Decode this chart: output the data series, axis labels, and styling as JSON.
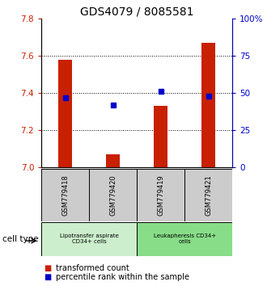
{
  "title": "GDS4079 / 8085581",
  "samples": [
    "GSM779418",
    "GSM779420",
    "GSM779419",
    "GSM779421"
  ],
  "red_values": [
    7.58,
    7.07,
    7.33,
    7.67
  ],
  "blue_values": [
    47,
    42,
    51,
    48
  ],
  "ylim_left": [
    7.0,
    7.8
  ],
  "ylim_right": [
    0,
    100
  ],
  "yticks_left": [
    7.0,
    7.2,
    7.4,
    7.6,
    7.8
  ],
  "yticks_right": [
    0,
    25,
    50,
    75,
    100
  ],
  "ytick_labels_right": [
    "0",
    "25",
    "50",
    "75",
    "100%"
  ],
  "red_color": "#c82000",
  "blue_color": "#0000cc",
  "bar_width": 0.3,
  "legend_red_label": "transformed count",
  "legend_blue_label": "percentile rank within the sample",
  "cell_type_label": "cell type",
  "sample_box_color": "#cccccc",
  "cell_group1_color": "#cceecc",
  "cell_group2_color": "#88dd88",
  "cell_group1_label": "Lipotransfer aspirate\nCD34+ cells",
  "cell_group2_label": "Leukapheresis CD34+\ncells",
  "title_fontsize": 10,
  "axis_fontsize": 7.5,
  "tick_fontsize": 7,
  "legend_fontsize": 7,
  "sample_fontsize": 6
}
